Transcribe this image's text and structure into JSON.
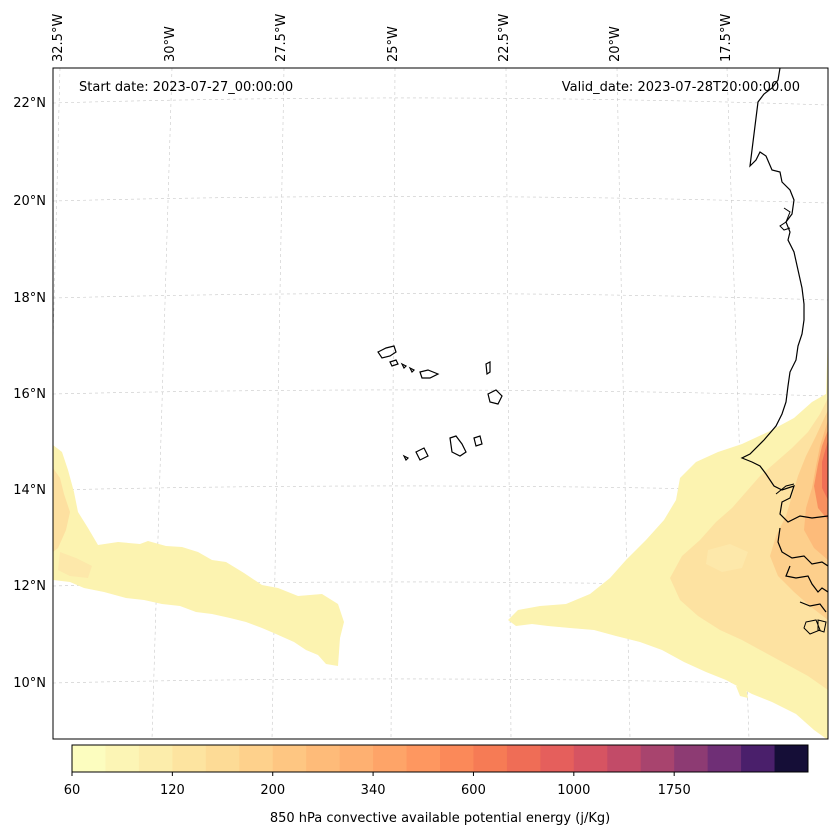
{
  "map": {
    "start_date": "Start date: 2023-07-27_00:00:00",
    "valid_date": "Valid_date: 2023-07-28T20:00:00.00",
    "lon_labels": [
      "32.5°W",
      "30°W",
      "27.5°W",
      "25°W",
      "22.5°W",
      "20°W",
      "17.5°W"
    ],
    "lat_labels": [
      "22°N",
      "20°N",
      "18°N",
      "16°N",
      "14°N",
      "12°N",
      "10°N"
    ],
    "gridlines": true
  },
  "colorbar": {
    "label": "850 hPa convective available potential energy (j/Kg)",
    "tick_labels": [
      "60",
      "120",
      "200",
      "340",
      "600",
      "1000",
      "1750"
    ],
    "colors": [
      "#fcfdbf",
      "#fcf5b5",
      "#fcedab",
      "#fde4a0",
      "#fddb96",
      "#fed18c",
      "#fec682",
      "#febb79",
      "#feb071",
      "#fea468",
      "#fe9760",
      "#fb8959",
      "#f67b55",
      "#ef6d56",
      "#e55f5c",
      "#d65462",
      "#c24b68",
      "#a8446e",
      "#8d3b73",
      "#6f2f76",
      "#4a1f6b",
      "#150e37"
    ]
  }
}
